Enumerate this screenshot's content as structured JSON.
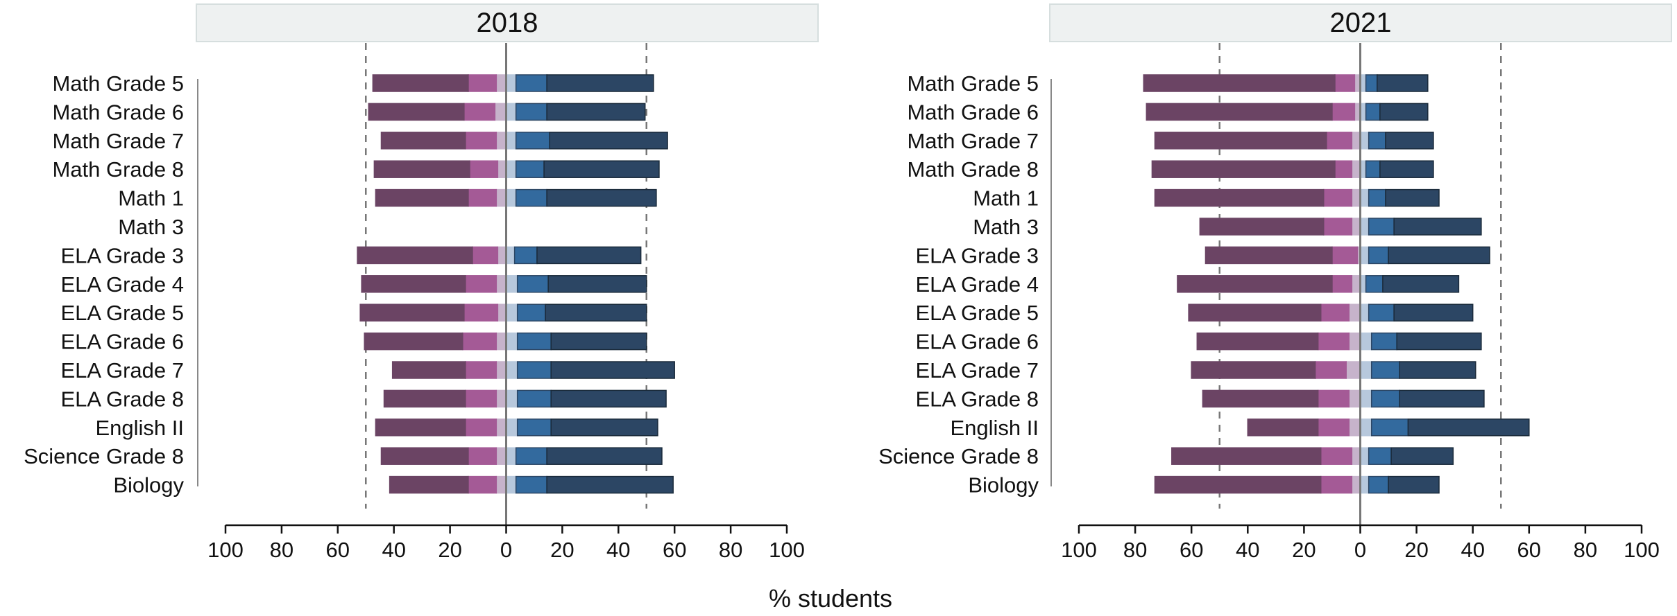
{
  "chart_data": {
    "type": "bar",
    "stacked": "diverging",
    "xlabel": "% students",
    "xlim": [
      -100,
      100
    ],
    "x_tick_labels": [
      "100",
      "80",
      "60",
      "40",
      "20",
      "0",
      "20",
      "40",
      "60",
      "80",
      "100"
    ],
    "reference_lines": [
      -50,
      50
    ],
    "categories": [
      "Math Grade 5",
      "Math Grade 6",
      "Math Grade 7",
      "Math Grade 8",
      "Math 1",
      "Math 3",
      "ELA Grade 3",
      "ELA Grade 4",
      "ELA Grade 5",
      "ELA Grade 6",
      "ELA Grade 7",
      "ELA Grade 8",
      "English II",
      "Science Grade 8",
      "Biology"
    ],
    "colors": {
      "level_1": "#6b4464",
      "level_2": "#a45a96",
      "level_3": "#c6b3cb",
      "level_4": "#b7c8dc",
      "level_5": "#336a9e",
      "level_6": "#2c4664",
      "panel_header": "#eef1f1",
      "panel_header_border": "#d6dede",
      "zero_line": "#777777",
      "ref_line": "#777777"
    },
    "panels": [
      {
        "title": "2018",
        "series": [
          {
            "values": [
              -34,
              -34,
              -30,
              -34,
              -33,
              null,
              -41,
              -37,
              -37,
              -35,
              -26,
              -29,
              -32,
              -31,
              -28
            ]
          },
          {
            "values": [
              -10,
              -11,
              -11,
              -10,
              -10,
              null,
              -9,
              -11,
              -12,
              -12,
              -11,
              -11,
              -11,
              -10,
              -10
            ]
          },
          {
            "values": [
              -3.5,
              -4,
              -3.5,
              -3,
              -3.5,
              null,
              -3,
              -3.5,
              -3,
              -3.5,
              -3.5,
              -3.5,
              -3.5,
              -3.5,
              -3.5
            ]
          },
          {
            "values": [
              3.5,
              3.5,
              3.5,
              3.5,
              3.5,
              null,
              3,
              4,
              4,
              4,
              4,
              4,
              4,
              3.5,
              3.5
            ]
          },
          {
            "values": [
              11,
              11,
              12,
              10,
              11,
              null,
              8,
              11,
              10,
              12,
              12,
              12,
              12,
              11,
              11
            ]
          },
          {
            "values": [
              38,
              35,
              42,
              41,
              39,
              null,
              37,
              35,
              36,
              34,
              44,
              41,
              38,
              41,
              45
            ]
          }
        ]
      },
      {
        "title": "2021",
        "series": [
          {
            "values": [
              -68,
              -66,
              -61,
              -65,
              -60,
              -44,
              -45,
              -55,
              -47,
              -43,
              -44,
              -41,
              -25,
              -53,
              -59
            ]
          },
          {
            "values": [
              -7,
              -8,
              -9,
              -6,
              -10,
              -10,
              -9,
              -7,
              -10,
              -11,
              -11,
              -11,
              -11,
              -11,
              -11
            ]
          },
          {
            "values": [
              -2,
              -2,
              -3,
              -3,
              -3,
              -3,
              -1,
              -3,
              -4,
              -4,
              -5,
              -4,
              -4,
              -3,
              -3
            ]
          },
          {
            "values": [
              2,
              2,
              3,
              2,
              3,
              3,
              3,
              2,
              3,
              4,
              4,
              4,
              4,
              3,
              3
            ]
          },
          {
            "values": [
              4,
              5,
              6,
              5,
              6,
              9,
              7,
              6,
              9,
              9,
              10,
              10,
              13,
              8,
              7
            ]
          },
          {
            "values": [
              18,
              17,
              17,
              19,
              19,
              31,
              36,
              27,
              28,
              30,
              27,
              30,
              43,
              22,
              18
            ]
          }
        ]
      }
    ]
  }
}
